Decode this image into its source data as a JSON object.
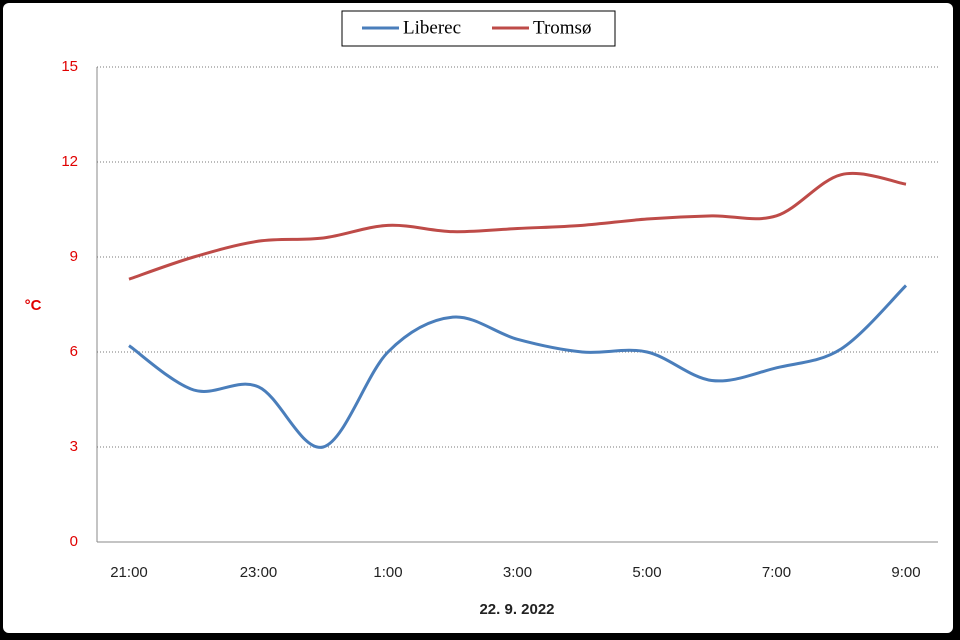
{
  "chart_data": {
    "type": "line",
    "x_label": "22. 9. 2022",
    "y_label": "°C",
    "categories": [
      "21:00",
      null,
      "23:00",
      null,
      "1:00",
      null,
      "3:00",
      null,
      "5:00",
      null,
      "7:00",
      null,
      "9:00"
    ],
    "series": [
      {
        "name": "Liberec",
        "color": "#4a7ebb",
        "values": [
          6.2,
          4.8,
          4.9,
          3.0,
          6.0,
          7.1,
          6.4,
          6.0,
          6.0,
          5.1,
          5.5,
          6.1,
          8.1
        ]
      },
      {
        "name": "Tromsø",
        "color": "#be4b48",
        "values": [
          8.3,
          9.0,
          9.5,
          9.6,
          10.0,
          9.8,
          9.9,
          10.0,
          10.2,
          10.3,
          10.3,
          11.6,
          11.3
        ]
      }
    ],
    "ylim": [
      0,
      15
    ],
    "yticks": [
      0,
      3,
      6,
      9,
      12,
      15
    ],
    "grid": true,
    "smooth": true,
    "legend": "top"
  }
}
